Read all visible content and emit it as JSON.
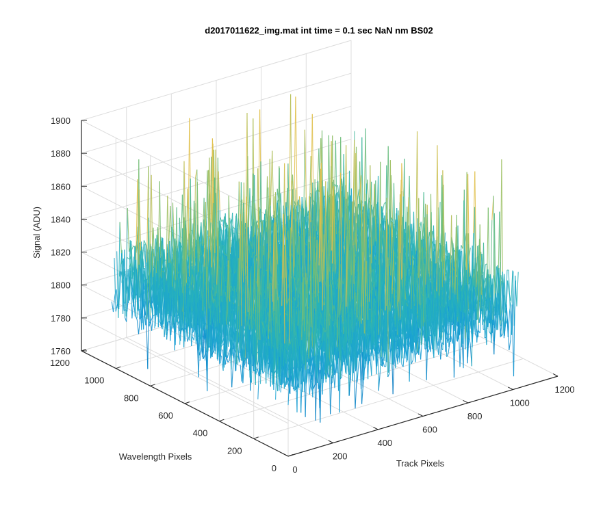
{
  "chart_data": {
    "type": "surface",
    "title": "d2017011622_img.mat int time = 0.1 sec  NaN nm BS02",
    "xlabel": "Track Pixels",
    "ylabel": "Wavelength Pixels",
    "zlabel": "Signal (ADU)",
    "xlim": [
      0,
      1200
    ],
    "ylim": [
      0,
      1200
    ],
    "zlim": [
      1760,
      1900
    ],
    "data_extent": {
      "x": [
        0,
        1024
      ],
      "y": [
        0,
        1024
      ]
    },
    "x_ticks": [
      "0",
      "200",
      "400",
      "600",
      "800",
      "1000",
      "1200"
    ],
    "y_ticks": [
      "0",
      "200",
      "400",
      "600",
      "800",
      "1000",
      "1200"
    ],
    "z_ticks": [
      "1760",
      "1780",
      "1800",
      "1820",
      "1840",
      "1860",
      "1880",
      "1900"
    ],
    "grid": true,
    "colormap": "parula",
    "colors": {
      "low": "#0072bd",
      "mid": "#2ab5b5",
      "high": "#e0c04a"
    },
    "signal_summary": {
      "mean": 1812,
      "typical_min": 1775,
      "typical_max": 1855,
      "peak_max": 1895
    }
  }
}
